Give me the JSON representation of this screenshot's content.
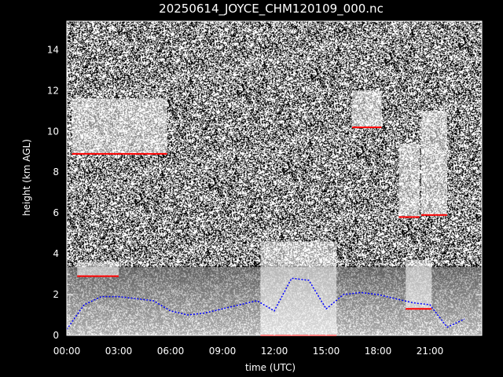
{
  "title": "20250614_JOYCE_CHM120109_000.nc",
  "chart_data": {
    "type": "heatmap",
    "title": "20250614_JOYCE_CHM120109_000.nc",
    "xlabel": "time (UTC)",
    "ylabel": "height (km AGL)",
    "xlim": [
      0,
      24
    ],
    "ylim": [
      0,
      15.4
    ],
    "x_ticks": [
      "00:00",
      "03:00",
      "06:00",
      "09:00",
      "12:00",
      "15:00",
      "18:00",
      "21:00"
    ],
    "x_tick_values": [
      0,
      3,
      6,
      9,
      12,
      15,
      18,
      21
    ],
    "y_ticks": [
      "0",
      "2",
      "4",
      "6",
      "8",
      "10",
      "12",
      "14"
    ],
    "y_tick_values": [
      0,
      2,
      4,
      6,
      8,
      10,
      12,
      14
    ],
    "colors": {
      "background": "#000000",
      "noise": "#ffffff",
      "cloud_base": "#ff0000",
      "boundary_layer": "#0000ff"
    },
    "features": {
      "cirrus": [
        {
          "x": [
            0.3,
            5.8
          ],
          "y": [
            8.9,
            11.6
          ]
        },
        {
          "x": [
            16.5,
            18.2
          ],
          "y": [
            10.2,
            12.0
          ]
        },
        {
          "x": [
            19.2,
            20.4
          ],
          "y": [
            5.8,
            9.4
          ]
        },
        {
          "x": [
            20.5,
            22.0
          ],
          "y": [
            5.9,
            11.0
          ]
        }
      ],
      "mid_level_clouds": [
        {
          "x": [
            0.6,
            3.0
          ],
          "y": [
            2.9,
            3.6
          ]
        },
        {
          "x": [
            11.2,
            15.6
          ],
          "y": [
            0,
            4.6
          ]
        },
        {
          "x": [
            19.6,
            21.1
          ],
          "y": [
            1.3,
            3.7
          ]
        }
      ],
      "boundary_layer_height": {
        "hours": [
          0,
          1,
          2,
          3,
          4,
          5,
          6,
          7,
          8,
          9,
          10,
          11,
          12,
          13,
          14,
          15,
          16,
          17,
          18,
          19,
          20,
          21,
          22,
          23
        ],
        "km": [
          0.3,
          1.5,
          1.9,
          1.9,
          1.8,
          1.7,
          1.2,
          1.0,
          1.1,
          1.3,
          1.5,
          1.7,
          1.2,
          2.8,
          2.7,
          1.3,
          2.0,
          2.1,
          2.0,
          1.8,
          1.6,
          1.5,
          0.4,
          0.8
        ]
      }
    }
  }
}
